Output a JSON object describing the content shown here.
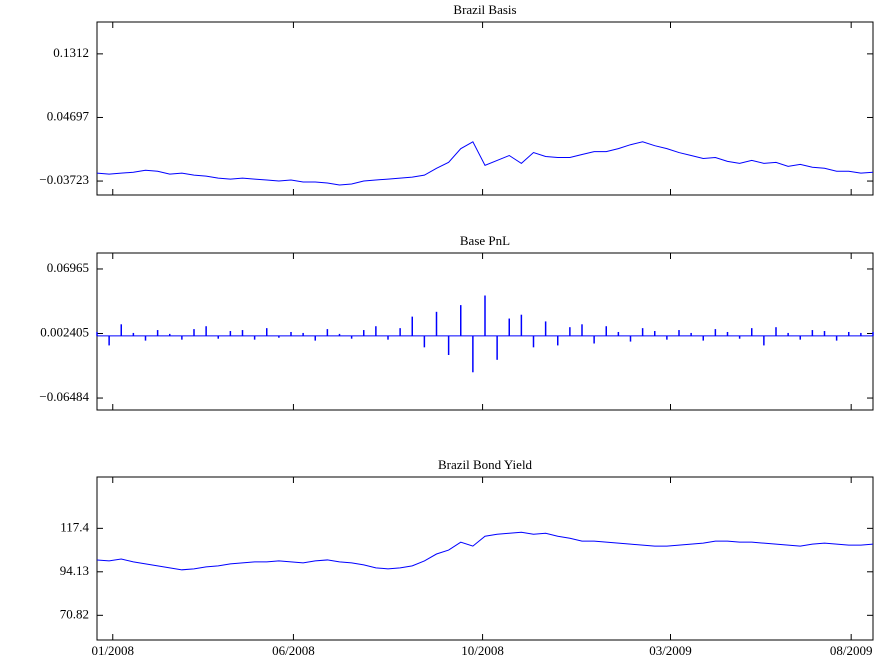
{
  "chart_data": [
    {
      "type": "line",
      "title": "Brazil Basis",
      "color": "#0000ff",
      "x": [
        0,
        1,
        2,
        3,
        4,
        5,
        6,
        7,
        8,
        9,
        10,
        11,
        12,
        13,
        14,
        15,
        16,
        17,
        18,
        19,
        20,
        21,
        22,
        23,
        24,
        25,
        26,
        27,
        28,
        29,
        30,
        31,
        32,
        33,
        34,
        35,
        36,
        37,
        38,
        39,
        40,
        41,
        42,
        43,
        44,
        45,
        46,
        47,
        48,
        49,
        50,
        51,
        52,
        53,
        54,
        55,
        56,
        57,
        58,
        59,
        60,
        61,
        62,
        63,
        64
      ],
      "values": [
        -0.0268,
        -0.0281,
        -0.0268,
        -0.0255,
        -0.0229,
        -0.0242,
        -0.0281,
        -0.0268,
        -0.0294,
        -0.0307,
        -0.0333,
        -0.0346,
        -0.0333,
        -0.0346,
        -0.0359,
        -0.0372,
        -0.0359,
        -0.0385,
        -0.0385,
        -0.0398,
        -0.0424,
        -0.0411,
        -0.0372,
        -0.0359,
        -0.0346,
        -0.0333,
        -0.032,
        -0.0294,
        -0.0203,
        -0.0125,
        0.0057,
        0.0148,
        -0.0164,
        -0.0099,
        -0.0034,
        -0.0138,
        0.0005,
        -0.0047,
        -0.006,
        -0.006,
        -0.0021,
        0.0018,
        0.0018,
        0.0057,
        0.0109,
        0.0148,
        0.0096,
        0.0057,
        0.0005,
        -0.0034,
        -0.0073,
        -0.006,
        -0.0112,
        -0.0138,
        -0.0099,
        -0.0138,
        -0.0125,
        -0.0177,
        -0.0151,
        -0.019,
        -0.0203,
        -0.0242,
        -0.0242,
        -0.0268,
        -0.0255
      ],
      "xlim": [
        0,
        64
      ],
      "xticks": [
        1.3,
        16.2,
        31.8,
        47.3,
        62.2
      ],
      "ylim": [
        -0.0557,
        0.1734
      ],
      "yticks": [
        {
          "value": -0.03723,
          "label": "−0.03723"
        },
        0.04697,
        0.1312
      ]
    },
    {
      "type": "bar",
      "title": "Base PnL",
      "color": "#0000ff",
      "x": [
        0,
        1,
        2,
        3,
        4,
        5,
        6,
        7,
        8,
        9,
        10,
        11,
        12,
        13,
        14,
        15,
        16,
        17,
        18,
        19,
        20,
        21,
        22,
        23,
        24,
        25,
        26,
        27,
        28,
        29,
        30,
        31,
        32,
        33,
        34,
        35,
        36,
        37,
        38,
        39,
        40,
        41,
        42,
        43,
        44,
        45,
        46,
        47,
        48,
        49,
        50,
        51,
        52,
        53,
        54,
        55,
        56,
        57,
        58,
        59,
        60,
        61,
        62,
        63,
        64
      ],
      "values": [
        0.004,
        -0.01,
        0.012,
        0.003,
        -0.005,
        0.006,
        0.002,
        -0.004,
        0.007,
        0.01,
        -0.003,
        0.005,
        0.006,
        -0.004,
        0.008,
        -0.002,
        0.004,
        0.003,
        -0.005,
        0.007,
        0.002,
        -0.003,
        0.006,
        0.01,
        -0.004,
        0.008,
        0.02,
        -0.012,
        0.025,
        -0.02,
        0.032,
        -0.038,
        0.042,
        -0.025,
        0.018,
        0.022,
        -0.012,
        0.015,
        -0.01,
        0.009,
        0.012,
        -0.008,
        0.01,
        0.004,
        -0.006,
        0.008,
        0.005,
        -0.004,
        0.006,
        0.003,
        -0.005,
        0.007,
        0.004,
        -0.003,
        0.008,
        -0.01,
        0.009,
        0.003,
        -0.004,
        0.006,
        0.005,
        -0.005,
        0.004,
        0.003,
        0.004
      ],
      "xlim": [
        0,
        64
      ],
      "xticks": [
        1.3,
        16.2,
        31.8,
        47.3,
        62.2
      ],
      "ylim": [
        -0.0773,
        0.0863
      ],
      "yticks": [
        {
          "value": -0.06484,
          "label": "−0.06484"
        },
        0.002405,
        0.06965
      ]
    },
    {
      "type": "line",
      "title": "Brazil Bond Yield",
      "color": "#0000ff",
      "x": [
        0,
        1,
        2,
        3,
        4,
        5,
        6,
        7,
        8,
        9,
        10,
        11,
        12,
        13,
        14,
        15,
        16,
        17,
        18,
        19,
        20,
        21,
        22,
        23,
        24,
        25,
        26,
        27,
        28,
        29,
        30,
        31,
        32,
        33,
        34,
        35,
        36,
        37,
        38,
        39,
        40,
        41,
        42,
        43,
        44,
        45,
        46,
        47,
        48,
        49,
        50,
        51,
        52,
        53,
        54,
        55,
        56,
        57,
        58,
        59,
        60,
        61,
        62,
        63,
        64
      ],
      "values": [
        100.48,
        99.95,
        101.0,
        99.42,
        98.36,
        97.3,
        96.25,
        95.19,
        95.72,
        96.77,
        97.3,
        98.36,
        98.89,
        99.42,
        99.42,
        99.95,
        99.42,
        98.89,
        99.95,
        100.48,
        99.42,
        98.89,
        97.83,
        96.25,
        95.72,
        96.25,
        97.3,
        99.95,
        103.65,
        105.77,
        110.0,
        107.88,
        113.17,
        114.23,
        114.76,
        115.29,
        114.23,
        114.76,
        113.17,
        112.11,
        110.53,
        110.53,
        110.0,
        109.47,
        108.94,
        108.41,
        107.88,
        107.88,
        108.41,
        108.94,
        109.47,
        110.53,
        110.53,
        110.0,
        110.0,
        109.47,
        108.94,
        108.41,
        107.88,
        108.94,
        109.47,
        108.94,
        108.41,
        108.41,
        108.94
      ],
      "xlim": [
        0,
        64
      ],
      "xticks": [
        {
          "value": 1.3,
          "label": "01/2008"
        },
        {
          "value": 16.2,
          "label": "06/2008"
        },
        {
          "value": 31.8,
          "label": "10/2008"
        },
        {
          "value": 47.3,
          "label": "03/2009"
        },
        {
          "value": 62.2,
          "label": "08/2009"
        }
      ],
      "ylim": [
        57.6,
        144.9
      ],
      "yticks": [
        70.82,
        94.13,
        117.4
      ]
    }
  ]
}
